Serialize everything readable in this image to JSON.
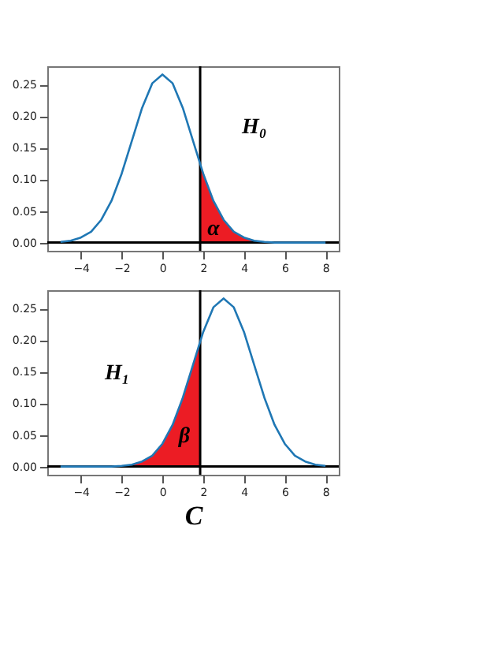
{
  "chart_data": [
    {
      "type": "line",
      "grid": false,
      "series": [
        {
          "type": "area",
          "color": "#ec1c24",
          "x": [
            1.85,
            2,
            2.5,
            3,
            3.5,
            4,
            4.5,
            5,
            5.5,
            6,
            6.5,
            7,
            7.5,
            8
          ],
          "values": [
            0.124,
            0.109,
            0.066,
            0.036,
            0.017,
            0.008,
            0.003,
            0.001,
            0,
            0,
            0,
            0,
            0,
            0
          ]
        },
        {
          "type": "line",
          "color": "#1f77b4",
          "x": [
            -5,
            -4.5,
            -4,
            -3.5,
            -3,
            -2.5,
            -2,
            -1.5,
            -1,
            -0.5,
            0,
            0.5,
            1,
            1.5,
            2,
            2.5,
            3,
            3.5,
            4,
            4.5,
            5,
            5.5,
            6,
            6.5,
            7,
            7.5,
            8
          ],
          "values": [
            0.001,
            0.003,
            0.008,
            0.017,
            0.036,
            0.066,
            0.109,
            0.161,
            0.213,
            0.252,
            0.266,
            0.252,
            0.213,
            0.161,
            0.109,
            0.066,
            0.036,
            0.017,
            0.008,
            0.003,
            0.001,
            0,
            0,
            0,
            0,
            0,
            0
          ]
        }
      ],
      "xlim": [
        -5.65,
        8.65
      ],
      "ylim": [
        -0.013,
        0.279
      ],
      "xticks": [
        -4,
        -2,
        0,
        2,
        4,
        6,
        8
      ],
      "yticks": [
        {
          "value": 0,
          "label": "0.00"
        },
        {
          "value": 0.05,
          "label": "0.05"
        },
        {
          "value": 0.1,
          "label": "0.10"
        },
        {
          "value": 0.15,
          "label": "0.15"
        },
        {
          "value": 0.2,
          "label": "0.20"
        },
        {
          "value": 0.25,
          "label": "0.25"
        }
      ],
      "ref_lines": [
        {
          "axis": "x",
          "value": 1.85,
          "color": "#000000"
        },
        {
          "axis": "y",
          "value": 0,
          "color": "#000000"
        }
      ],
      "annotations": [
        "H₀",
        "α"
      ]
    },
    {
      "type": "line",
      "grid": false,
      "xlabel": "C",
      "series": [
        {
          "type": "area",
          "color": "#ec1c24",
          "x": [
            -5,
            -4.5,
            -4,
            -3.5,
            -3,
            -2.5,
            -2,
            -1.5,
            -1,
            -0.5,
            0,
            0.5,
            1,
            1.5,
            1.85
          ],
          "values": [
            0,
            0,
            0,
            0,
            0,
            0,
            0.001,
            0.003,
            0.008,
            0.017,
            0.036,
            0.066,
            0.109,
            0.161,
            0.198
          ]
        },
        {
          "type": "line",
          "color": "#1f77b4",
          "x": [
            -5,
            -4.5,
            -4,
            -3.5,
            -3,
            -2.5,
            -2,
            -1.5,
            -1,
            -0.5,
            0,
            0.5,
            1,
            1.5,
            2,
            2.5,
            3,
            3.5,
            4,
            4.5,
            5,
            5.5,
            6,
            6.5,
            7,
            7.5,
            8
          ],
          "values": [
            0,
            0,
            0,
            0,
            0,
            0,
            0.001,
            0.003,
            0.008,
            0.017,
            0.036,
            0.066,
            0.109,
            0.161,
            0.213,
            0.252,
            0.266,
            0.252,
            0.213,
            0.161,
            0.109,
            0.066,
            0.036,
            0.017,
            0.008,
            0.003,
            0.001
          ]
        }
      ],
      "xlim": [
        -5.65,
        8.65
      ],
      "ylim": [
        -0.013,
        0.279
      ],
      "xticks": [
        -4,
        -2,
        0,
        2,
        4,
        6,
        8
      ],
      "yticks": [
        {
          "value": 0,
          "label": "0.00"
        },
        {
          "value": 0.05,
          "label": "0.05"
        },
        {
          "value": 0.1,
          "label": "0.10"
        },
        {
          "value": 0.15,
          "label": "0.15"
        },
        {
          "value": 0.2,
          "label": "0.20"
        },
        {
          "value": 0.25,
          "label": "0.25"
        }
      ],
      "ref_lines": [
        {
          "axis": "x",
          "value": 1.85,
          "color": "#000000"
        },
        {
          "axis": "y",
          "value": 0,
          "color": "#000000"
        }
      ],
      "annotations": [
        "H₁",
        "β"
      ]
    }
  ]
}
